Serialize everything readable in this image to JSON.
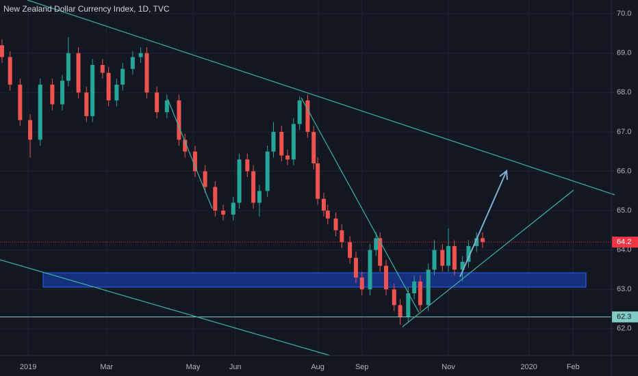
{
  "chart_data": {
    "type": "candlestick",
    "title": "New Zealand Dollar Currency Index, 1D, TVC",
    "x": [
      1,
      5,
      10,
      15,
      20,
      26,
      31,
      34,
      39,
      43,
      46,
      51,
      54,
      58,
      61,
      66,
      70,
      73,
      78,
      83,
      89,
      92,
      97,
      102,
      107,
      111,
      116,
      119,
      123,
      126,
      129,
      133,
      136,
      140,
      143,
      146,
      149,
      153,
      156,
      158,
      161,
      163,
      167,
      170,
      174,
      177,
      180,
      184,
      187,
      189,
      192,
      196,
      199,
      203,
      206,
      209,
      213,
      216,
      220,
      223,
      226,
      230,
      233,
      237,
      240
    ],
    "open": [
      69.2,
      68.9,
      68.2,
      67.3,
      66.8,
      68.2,
      67.7,
      68.3,
      69.0,
      68.0,
      67.4,
      68.7,
      68.5,
      67.8,
      68.2,
      68.6,
      68.9,
      69.0,
      68.0,
      67.5,
      67.8,
      66.8,
      66.5,
      66.0,
      65.6,
      65.0,
      64.9,
      65.2,
      66.3,
      66.0,
      65.2,
      65.5,
      66.5,
      67.0,
      66.4,
      66.3,
      67.2,
      67.8,
      67.0,
      66.2,
      65.3,
      65.0,
      64.8,
      64.5,
      64.2,
      63.8,
      63.3,
      63.0,
      64.0,
      64.3,
      63.6,
      63.0,
      62.6,
      62.3,
      62.9,
      63.2,
      62.6,
      63.5,
      64.0,
      63.6,
      64.1,
      63.5,
      63.7,
      64.1,
      64.3
    ],
    "high": [
      69.35,
      69.05,
      68.35,
      67.45,
      68.35,
      68.35,
      68.45,
      69.4,
      69.15,
      68.15,
      68.85,
      68.85,
      68.65,
      68.35,
      68.75,
      69.05,
      69.15,
      69.15,
      68.15,
      67.95,
      67.95,
      66.95,
      66.65,
      66.15,
      65.75,
      65.15,
      65.35,
      66.45,
      66.45,
      66.15,
      65.65,
      66.65,
      67.25,
      67.15,
      66.55,
      67.35,
      67.9,
      67.95,
      67.15,
      66.35,
      65.45,
      65.15,
      64.95,
      64.65,
      64.35,
      63.95,
      63.45,
      64.15,
      64.45,
      64.45,
      63.75,
      63.15,
      62.75,
      63.05,
      63.35,
      63.35,
      63.65,
      64.25,
      64.15,
      64.55,
      64.25,
      63.85,
      64.25,
      64.45,
      64.45
    ],
    "low": [
      68.75,
      68.05,
      67.15,
      66.35,
      66.65,
      67.55,
      67.55,
      68.15,
      67.85,
      67.25,
      67.25,
      68.35,
      67.65,
      67.65,
      68.05,
      68.45,
      68.75,
      67.85,
      67.35,
      67.35,
      66.65,
      66.35,
      65.85,
      65.45,
      64.85,
      64.75,
      64.75,
      65.05,
      65.85,
      65.05,
      64.85,
      65.35,
      66.35,
      66.25,
      66.15,
      66.15,
      67.05,
      66.85,
      66.05,
      65.15,
      64.85,
      64.65,
      64.35,
      64.05,
      63.65,
      63.15,
      62.85,
      62.85,
      63.85,
      63.45,
      62.85,
      62.45,
      62.1,
      62.15,
      62.75,
      62.45,
      62.45,
      63.35,
      63.45,
      63.45,
      63.35,
      63.2,
      63.55,
      63.95,
      64.05
    ],
    "close": [
      68.9,
      68.2,
      67.3,
      66.8,
      68.2,
      67.7,
      68.3,
      69.0,
      68.0,
      67.4,
      68.7,
      68.5,
      67.8,
      68.2,
      68.6,
      68.9,
      69.0,
      68.0,
      67.5,
      67.8,
      66.8,
      66.5,
      66.0,
      65.6,
      65.0,
      64.9,
      65.2,
      66.3,
      66.0,
      65.2,
      65.5,
      66.5,
      67.0,
      66.4,
      66.3,
      67.2,
      67.8,
      67.0,
      66.2,
      65.3,
      65.0,
      64.8,
      64.5,
      64.2,
      63.8,
      63.3,
      63.0,
      64.0,
      64.3,
      63.6,
      63.0,
      62.6,
      62.3,
      62.9,
      63.2,
      62.6,
      63.5,
      64.0,
      63.6,
      64.1,
      63.5,
      63.7,
      64.1,
      64.3,
      64.2
    ],
    "up_color": "#26a69a",
    "down_color": "#ef5350",
    "xlim": [
      0,
      304
    ],
    "xticks": [
      {
        "value": 14,
        "label": "2019"
      },
      {
        "value": 53,
        "label": "Mar"
      },
      {
        "value": 96,
        "label": "May"
      },
      {
        "value": 117,
        "label": "Jun"
      },
      {
        "value": 158,
        "label": "Aug"
      },
      {
        "value": 180,
        "label": "Sep"
      },
      {
        "value": 223,
        "label": "Nov"
      },
      {
        "value": 263,
        "label": "2020"
      },
      {
        "value": 285,
        "label": "Feb"
      }
    ],
    "ylim": [
      61.32,
      70.35
    ],
    "yticks": [
      {
        "value": 62,
        "label": "62.0"
      },
      {
        "value": 63,
        "label": "63.0"
      },
      {
        "value": 64,
        "label": "64.0"
      },
      {
        "value": 65,
        "label": "65.0"
      },
      {
        "value": 66,
        "label": "66.0"
      },
      {
        "value": 67,
        "label": "67.0"
      },
      {
        "value": 68,
        "label": "68.0"
      },
      {
        "value": 69,
        "label": "69.0"
      },
      {
        "value": 70,
        "label": "70.0"
      }
    ],
    "grid": true,
    "price_lines": [
      {
        "value": 64.2,
        "color": "#f23645",
        "style": "dotted"
      },
      {
        "value": 62.3,
        "color": "#80cbc4",
        "style": "solid"
      }
    ]
  }
}
